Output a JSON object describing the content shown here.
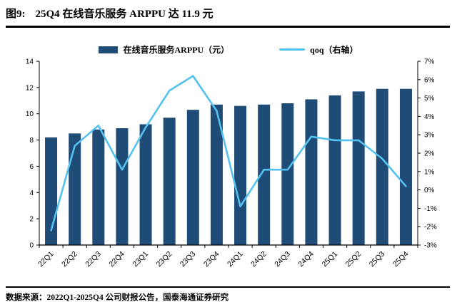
{
  "header": {
    "fig_label": "图9:",
    "title": "25Q4 在线音乐服务 ARPPU 达 11.9 元"
  },
  "legend": {
    "bar_label": "在线音乐服务ARPPU（元）",
    "line_label": "qoq（右轴）"
  },
  "footer": {
    "text": "数据来源：2022Q1-2025Q4 公司财报公告，国泰海通证券研究"
  },
  "chart_data": {
    "type": "bar+line",
    "title": "25Q4 在线音乐服务 ARPPU 达 11.9 元",
    "categories": [
      "22Q1",
      "22Q2",
      "22Q3",
      "22Q4",
      "23Q1",
      "23Q2",
      "23Q3",
      "23Q4",
      "24Q1",
      "24Q2",
      "24Q3",
      "24Q4",
      "25Q1",
      "25Q2",
      "25Q3",
      "25Q4"
    ],
    "series": [
      {
        "name": "在线音乐服务ARPPU（元）",
        "chart": "bar",
        "axis": "left",
        "unit": "元",
        "color": "#1F4B77",
        "values": [
          8.2,
          8.5,
          8.8,
          8.9,
          9.2,
          9.7,
          10.3,
          10.7,
          10.6,
          10.7,
          10.8,
          11.1,
          11.4,
          11.7,
          11.9,
          11.9
        ]
      },
      {
        "name": "qoq（右轴）",
        "chart": "line",
        "axis": "right",
        "unit": "%",
        "color": "#54C2F0",
        "values": [
          -2.2,
          2.4,
          3.5,
          1.1,
          3.4,
          5.4,
          6.2,
          4.3,
          -0.9,
          1.1,
          1.1,
          2.9,
          2.7,
          2.7,
          1.7,
          0.2
        ]
      }
    ],
    "left_axis": {
      "min": 0,
      "max": 14,
      "step": 2
    },
    "right_axis": {
      "min": -3,
      "max": 7,
      "step": 1,
      "format": "percent"
    },
    "grid": false,
    "legend_position": "top-center"
  }
}
